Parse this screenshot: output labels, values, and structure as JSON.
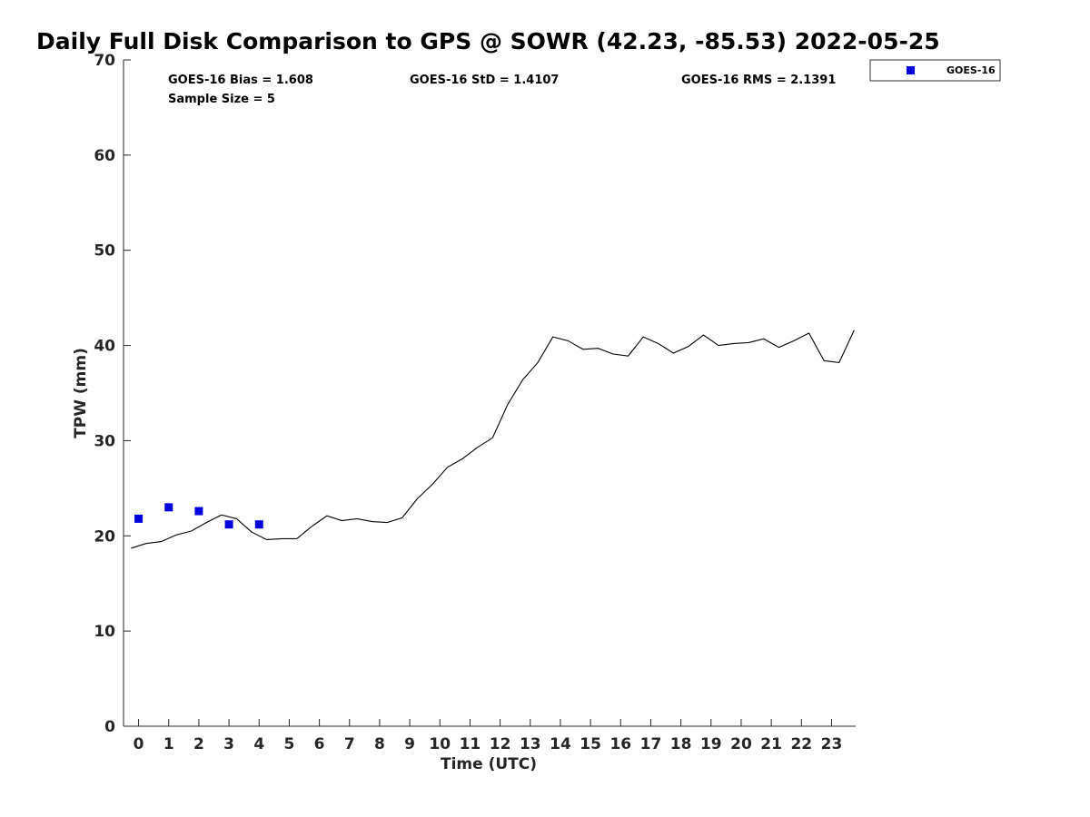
{
  "chart_data": {
    "type": "line",
    "title": "Daily Full Disk Comparison to GPS @ SOWR (42.23, -85.53) 2022-05-25",
    "xlabel": "Time (UTC)",
    "ylabel": "TPW (mm)",
    "xlim": [
      -0.5,
      23.8
    ],
    "ylim": [
      0,
      70
    ],
    "xticks": [
      0,
      1,
      2,
      3,
      4,
      5,
      6,
      7,
      8,
      9,
      10,
      11,
      12,
      13,
      14,
      15,
      16,
      17,
      18,
      19,
      20,
      21,
      22,
      23
    ],
    "yticks": [
      0,
      10,
      20,
      30,
      40,
      50,
      60,
      70
    ],
    "grid": false,
    "legend_position": "top-right, outside plot",
    "stats": {
      "bias": "GOES-16 Bias = 1.608",
      "std": "GOES-16 StD = 1.4107",
      "rms": "GOES-16 RMS = 2.1391",
      "sample": "Sample Size = 5"
    },
    "series": [
      {
        "kind": "line",
        "color": "#000000",
        "x": [
          -0.25,
          0.25,
          0.75,
          1.25,
          1.75,
          2.25,
          2.75,
          3.25,
          3.75,
          4.25,
          4.75,
          5.25,
          5.75,
          6.25,
          6.75,
          7.25,
          7.75,
          8.25,
          8.75,
          9.25,
          9.75,
          10.25,
          10.75,
          11.25,
          11.75,
          12.25,
          12.75,
          13.25,
          13.75,
          14.25,
          14.75,
          15.25,
          15.75,
          16.25,
          16.75,
          17.25,
          17.75,
          18.25,
          18.75,
          19.25,
          19.75,
          20.25,
          20.75,
          21.25,
          21.75,
          22.25,
          22.75,
          23.25,
          23.75
        ],
        "y": [
          18.7,
          19.2,
          19.4,
          20.1,
          20.5,
          21.4,
          22.2,
          21.8,
          20.4,
          19.6,
          19.7,
          19.7,
          21.0,
          22.1,
          21.6,
          21.8,
          21.5,
          21.4,
          21.9,
          23.9,
          25.4,
          27.2,
          28.1,
          29.3,
          30.3,
          33.8,
          36.4,
          38.2,
          40.9,
          40.5,
          39.6,
          39.7,
          39.1,
          38.9,
          40.9,
          40.2,
          39.2,
          39.9,
          41.1,
          40.0,
          40.2,
          40.3,
          40.7,
          39.8,
          40.5,
          41.3,
          38.4,
          38.2,
          41.6
        ]
      },
      {
        "kind": "scatter",
        "name": "GOES-16",
        "color": "#0000dd",
        "x": [
          0,
          1,
          2,
          3,
          4
        ],
        "y": [
          21.8,
          23.0,
          22.6,
          21.2,
          21.2
        ]
      }
    ]
  }
}
